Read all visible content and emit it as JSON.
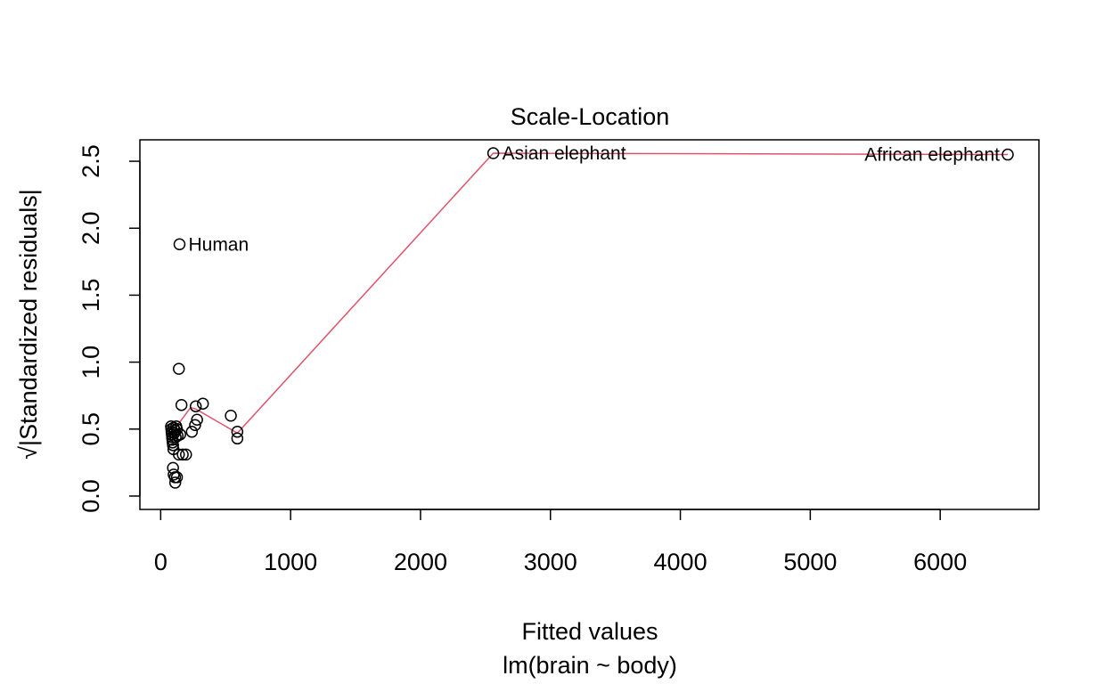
{
  "chart_data": {
    "type": "scatter",
    "title": "Scale-Location",
    "xlabel": "Fitted values",
    "xlabel_sub": "lm(brain ~ body)",
    "ylabel_text": "|Standardized residuals|",
    "ylabel_prefix": "√",
    "xlim": [
      -160,
      6760
    ],
    "ylim": [
      -0.1,
      2.66
    ],
    "xticks": [
      0,
      1000,
      2000,
      3000,
      4000,
      5000,
      6000
    ],
    "yticks": [
      0.0,
      0.5,
      1.0,
      1.5,
      2.0,
      2.5
    ],
    "xtick_labels": [
      "0",
      "1000",
      "2000",
      "3000",
      "4000",
      "5000",
      "6000"
    ],
    "ytick_labels": [
      "0.0",
      "0.5",
      "1.0",
      "1.5",
      "2.0",
      "2.5"
    ],
    "grid": false,
    "point_color": "#000000",
    "smooth_color": "#DF536B",
    "points": [
      {
        "x": 2560,
        "y": 2.56,
        "label": "Asian elephant"
      },
      {
        "x": 6520,
        "y": 2.55,
        "label": "African elephant"
      },
      {
        "x": 145,
        "y": 1.88,
        "label": "Human"
      },
      {
        "x": 140,
        "y": 0.95
      },
      {
        "x": 160,
        "y": 0.68
      },
      {
        "x": 325,
        "y": 0.69
      },
      {
        "x": 270,
        "y": 0.67
      },
      {
        "x": 540,
        "y": 0.6
      },
      {
        "x": 280,
        "y": 0.57
      },
      {
        "x": 265,
        "y": 0.53
      },
      {
        "x": 240,
        "y": 0.48
      },
      {
        "x": 590,
        "y": 0.48
      },
      {
        "x": 590,
        "y": 0.43
      },
      {
        "x": 150,
        "y": 0.46
      },
      {
        "x": 130,
        "y": 0.45
      },
      {
        "x": 80,
        "y": 0.52
      },
      {
        "x": 82,
        "y": 0.5
      },
      {
        "x": 84,
        "y": 0.48
      },
      {
        "x": 86,
        "y": 0.46
      },
      {
        "x": 88,
        "y": 0.44
      },
      {
        "x": 90,
        "y": 0.42
      },
      {
        "x": 92,
        "y": 0.4
      },
      {
        "x": 95,
        "y": 0.38
      },
      {
        "x": 98,
        "y": 0.35
      },
      {
        "x": 100,
        "y": 0.51
      },
      {
        "x": 105,
        "y": 0.47
      },
      {
        "x": 110,
        "y": 0.49
      },
      {
        "x": 115,
        "y": 0.44
      },
      {
        "x": 120,
        "y": 0.52
      },
      {
        "x": 125,
        "y": 0.5
      },
      {
        "x": 140,
        "y": 0.31
      },
      {
        "x": 170,
        "y": 0.31
      },
      {
        "x": 195,
        "y": 0.31
      },
      {
        "x": 95,
        "y": 0.21
      },
      {
        "x": 100,
        "y": 0.16
      },
      {
        "x": 110,
        "y": 0.14
      },
      {
        "x": 112,
        "y": 0.1
      },
      {
        "x": 125,
        "y": 0.14
      }
    ],
    "smooth_line": [
      {
        "x": 80,
        "y": 0.45
      },
      {
        "x": 100,
        "y": 0.5
      },
      {
        "x": 130,
        "y": 0.53
      },
      {
        "x": 160,
        "y": 0.57
      },
      {
        "x": 230,
        "y": 0.66
      },
      {
        "x": 270,
        "y": 0.65
      },
      {
        "x": 590,
        "y": 0.47
      },
      {
        "x": 2560,
        "y": 2.56
      },
      {
        "x": 6520,
        "y": 2.55
      }
    ]
  }
}
